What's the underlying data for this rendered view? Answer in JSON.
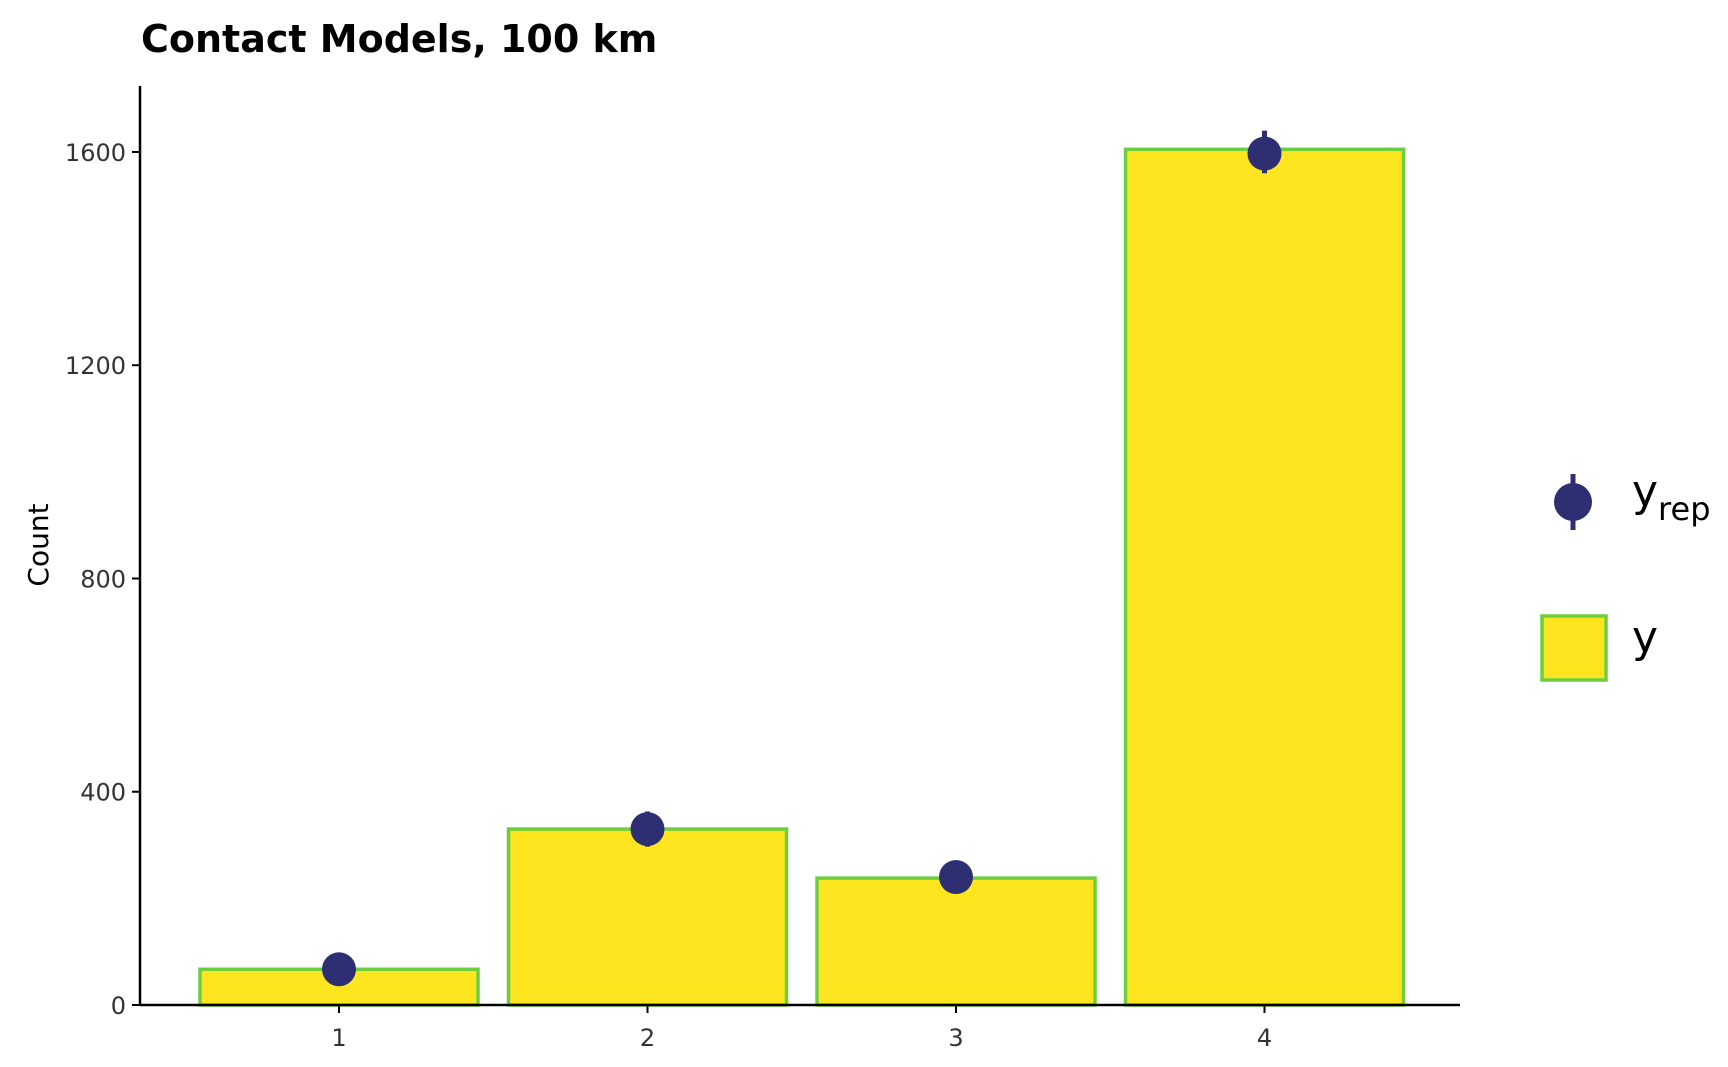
{
  "chart_data": {
    "type": "bar",
    "title": "Contact Models, 100 km",
    "xlabel": "",
    "ylabel": "Count",
    "categories": [
      "1",
      "2",
      "3",
      "4"
    ],
    "y_ticks": [
      0,
      400,
      800,
      1200,
      1600
    ],
    "ylim": [
      0,
      1720
    ],
    "grid": false,
    "series": [
      {
        "name": "y",
        "type": "bar",
        "values": [
          67,
          330,
          238,
          1605
        ]
      },
      {
        "name": "yrep",
        "type": "pointrange",
        "values": [
          67,
          330,
          240,
          1597
        ],
        "lower": [
          60,
          297,
          228,
          1560
        ],
        "upper": [
          74,
          363,
          252,
          1640
        ]
      }
    ],
    "legend": {
      "position": "right",
      "items": [
        {
          "main": "y",
          "sub": "rep",
          "marker": "pointrange"
        },
        {
          "main": "y",
          "sub": "",
          "marker": "bar"
        }
      ]
    },
    "colors": {
      "bar_fill": "#fde620",
      "bar_stroke": "#6cce3e",
      "point": "#2e2f73",
      "axis": "#000000"
    }
  }
}
